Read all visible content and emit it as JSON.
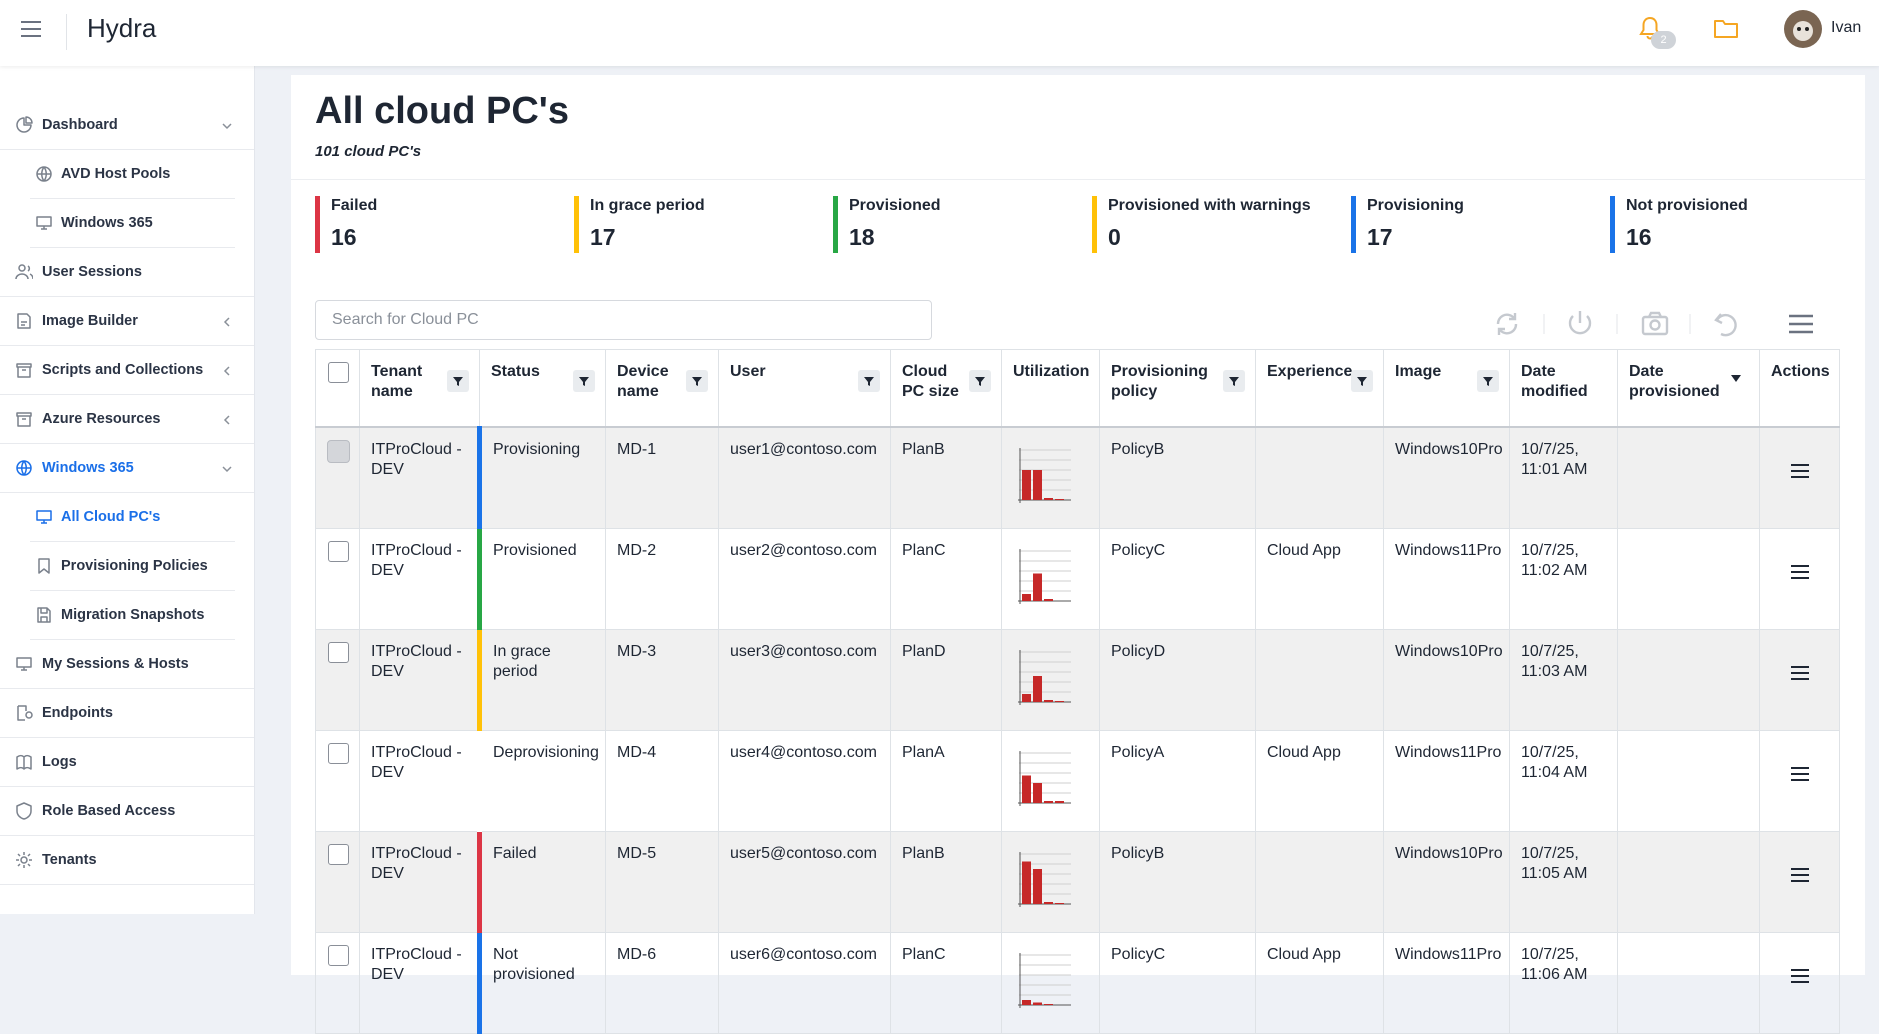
{
  "header": {
    "app_name": "Hydra",
    "notification_count": 2,
    "user_name": "Ivan"
  },
  "sidebar": {
    "items": [
      {
        "label": "Dashboard",
        "expanded": true,
        "children": [
          {
            "label": "AVD Host Pools"
          },
          {
            "label": "Windows 365"
          }
        ]
      },
      {
        "label": "User Sessions"
      },
      {
        "label": "Image Builder",
        "expanded": false
      },
      {
        "label": "Scripts and Collections",
        "expanded": false
      },
      {
        "label": "Azure Resources",
        "expanded": false
      },
      {
        "label": "Windows 365",
        "expanded": true,
        "active": true,
        "children": [
          {
            "label": "All Cloud PC's",
            "active": true
          },
          {
            "label": "Provisioning Policies"
          },
          {
            "label": "Migration Snapshots"
          }
        ]
      },
      {
        "label": "My Sessions & Hosts"
      },
      {
        "label": "Endpoints"
      },
      {
        "label": "Logs"
      },
      {
        "label": "Role Based Access"
      },
      {
        "label": "Tenants"
      }
    ]
  },
  "page": {
    "title": "All cloud PC's",
    "subtitle": "101 cloud PC's"
  },
  "status_cards": [
    {
      "label": "Failed",
      "value": 16,
      "color": "#dc3545"
    },
    {
      "label": "In grace period",
      "value": 17,
      "color": "#ffc107"
    },
    {
      "label": "Provisioned",
      "value": 18,
      "color": "#28a745"
    },
    {
      "label": "Provisioned with warnings",
      "value": 0,
      "color": "#ffc107"
    },
    {
      "label": "Provisioning",
      "value": 17,
      "color": "#1a73e8"
    },
    {
      "label": "Not provisioned",
      "value": 16,
      "color": "#1a73e8"
    }
  ],
  "search": {
    "placeholder": "Search for Cloud PC"
  },
  "table": {
    "columns": [
      {
        "label": "Tenant name",
        "filter": true
      },
      {
        "label": "Status",
        "filter": true
      },
      {
        "label": "Device name",
        "filter": true
      },
      {
        "label": "User",
        "filter": true
      },
      {
        "label": "Cloud PC size",
        "filter": true
      },
      {
        "label": "Utilization"
      },
      {
        "label": "Provisioning policy",
        "filter": true
      },
      {
        "label": "Experience",
        "filter": true
      },
      {
        "label": "Image",
        "filter": true
      },
      {
        "label": "Date modified"
      },
      {
        "label": "Date provisioned",
        "sort": "desc"
      },
      {
        "label": "Actions"
      }
    ],
    "utilization_ylim": [
      0,
      100
    ],
    "utilization_color": "#c62828",
    "rows": [
      {
        "tenant": "ITProCloud - DEV",
        "status": "Provisioning",
        "device": "MD-1",
        "user": "user1@contoso.com",
        "size": "PlanB",
        "utilization": [
          60,
          60,
          4,
          2
        ],
        "policy": "PolicyB",
        "image": "Windows10Pro",
        "date_modified": "10/7/25, 11:01 AM"
      },
      {
        "tenant": "ITProCloud - DEV",
        "status": "Provisioned",
        "device": "MD-2",
        "user": "user2@contoso.com",
        "size": "PlanC",
        "utilization": [
          14,
          55,
          4,
          0
        ],
        "policy": "PolicyC",
        "experience": "Cloud App",
        "image": "Windows11Pro",
        "date_modified": "10/7/25, 11:02 AM"
      },
      {
        "tenant": "ITProCloud - DEV",
        "status": "In grace period",
        "device": "MD-3",
        "user": "user3@contoso.com",
        "size": "PlanD",
        "utilization": [
          16,
          52,
          4,
          2
        ],
        "policy": "PolicyD",
        "image": "Windows10Pro",
        "date_modified": "10/7/25, 11:03 AM"
      },
      {
        "tenant": "ITProCloud - DEV",
        "status": "Deprovisioning",
        "device": "MD-4",
        "user": "user4@contoso.com",
        "size": "PlanA",
        "utilization": [
          55,
          40,
          4,
          4
        ],
        "policy": "PolicyA",
        "experience": "Cloud App",
        "image": "Windows11Pro",
        "date_modified": "10/7/25, 11:04 AM"
      },
      {
        "tenant": "ITProCloud - DEV",
        "status": "Failed",
        "device": "MD-5",
        "user": "user5@contoso.com",
        "size": "PlanB",
        "utilization": [
          85,
          70,
          4,
          2
        ],
        "policy": "PolicyB",
        "image": "Windows10Pro",
        "date_modified": "10/7/25, 11:05 AM"
      },
      {
        "tenant": "ITProCloud - DEV",
        "status": "Not provisioned",
        "device": "MD-6",
        "user": "user6@contoso.com",
        "size": "PlanC",
        "utilization": [
          10,
          5,
          2,
          0
        ],
        "policy": "PolicyC",
        "experience": "Cloud App",
        "image": "Windows11Pro",
        "date_modified": "10/7/25, 11:06 AM"
      }
    ]
  }
}
